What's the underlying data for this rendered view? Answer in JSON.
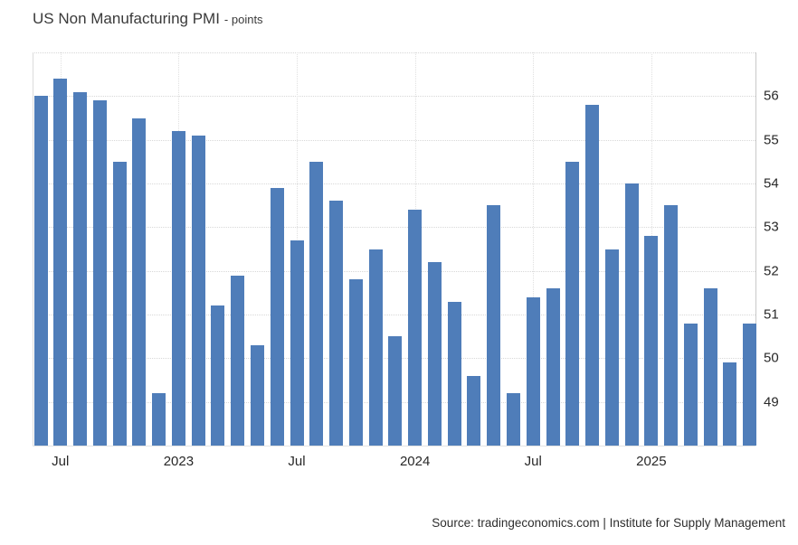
{
  "title": {
    "main": "US Non Manufacturing PMI",
    "unit_label": "- points"
  },
  "source_text": "Source: tradingeconomics.com | Institute for Supply Management",
  "colors": {
    "bar": "#4f7db9",
    "grid": "#d8d8d8",
    "axis": "#c9c9c9",
    "tick_text": "#282828",
    "title_text": "#3a3a3a"
  },
  "chart_data": {
    "type": "bar",
    "title": "US Non Manufacturing PMI",
    "subtitle_unit": "points",
    "categories": [
      "Jun 2022",
      "Jul 2022",
      "Aug 2022",
      "Sep 2022",
      "Oct 2022",
      "Nov 2022",
      "Dec 2022",
      "Jan 2023",
      "Feb 2023",
      "Mar 2023",
      "Apr 2023",
      "May 2023",
      "Jun 2023",
      "Jul 2023",
      "Aug 2023",
      "Sep 2023",
      "Oct 2023",
      "Nov 2023",
      "Dec 2023",
      "Jan 2024",
      "Feb 2024",
      "Mar 2024",
      "Apr 2024",
      "May 2024",
      "Jun 2024",
      "Jul 2024",
      "Aug 2024",
      "Sep 2024",
      "Oct 2024",
      "Nov 2024",
      "Dec 2024",
      "Jan 2025",
      "Feb 2025",
      "Mar 2025",
      "Apr 2025",
      "May 2025",
      "Jun 2025"
    ],
    "values": [
      56.0,
      56.4,
      56.1,
      55.9,
      54.5,
      55.5,
      49.2,
      55.2,
      55.1,
      51.2,
      51.9,
      50.3,
      53.9,
      52.7,
      54.5,
      53.6,
      51.8,
      52.5,
      50.5,
      53.4,
      52.2,
      51.3,
      49.6,
      53.5,
      49.2,
      51.4,
      51.6,
      54.5,
      55.8,
      52.5,
      54.0,
      52.8,
      53.5,
      50.8,
      51.6,
      49.9,
      50.8
    ],
    "ylim": [
      48,
      57
    ],
    "y_ticks": [
      49,
      50,
      51,
      52,
      53,
      54,
      55,
      56
    ],
    "y_axis_side": "right",
    "x_ticks": [
      {
        "label": "Jul",
        "index": 1
      },
      {
        "label": "2023",
        "index": 7
      },
      {
        "label": "Jul",
        "index": 13
      },
      {
        "label": "2024",
        "index": 19
      },
      {
        "label": "Jul",
        "index": 25
      },
      {
        "label": "2025",
        "index": 31
      }
    ],
    "grid": "dotted",
    "legend": "none"
  }
}
